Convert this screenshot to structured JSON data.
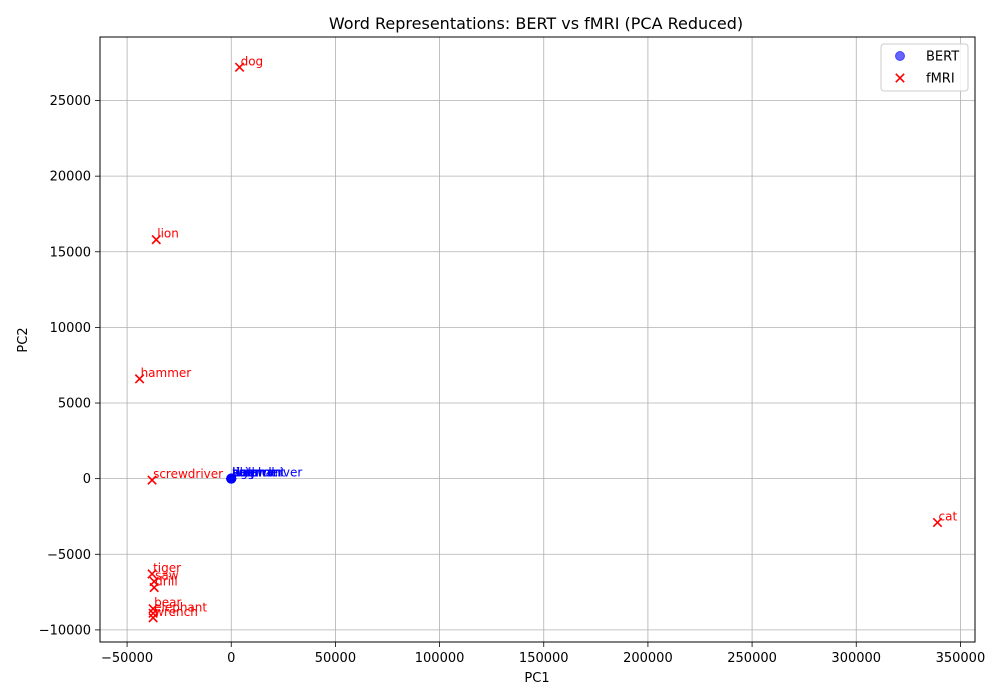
{
  "chart_data": {
    "type": "scatter",
    "title": "Word Representations: BERT vs fMRI (PCA Reduced)",
    "xlabel": "PC1",
    "ylabel": "PC2",
    "xlim": [
      -63000,
      357000
    ],
    "ylim": [
      -10800,
      29200
    ],
    "xticks": [
      -50000,
      0,
      50000,
      100000,
      150000,
      200000,
      250000,
      300000,
      350000
    ],
    "yticks": [
      -10000,
      -5000,
      0,
      5000,
      10000,
      15000,
      20000,
      25000
    ],
    "grid": true,
    "legend_position": "top-right",
    "series": [
      {
        "name": "BERT",
        "color": "#0000ff",
        "marker": "circle",
        "points": [
          {
            "label": "dog",
            "x": 0,
            "y": 0
          },
          {
            "label": "cat",
            "x": 0,
            "y": 0
          },
          {
            "label": "lion",
            "x": 0,
            "y": 0
          },
          {
            "label": "tiger",
            "x": 0,
            "y": 0
          },
          {
            "label": "bear",
            "x": 0,
            "y": 0
          },
          {
            "label": "elephant",
            "x": 0,
            "y": 0
          },
          {
            "label": "hammer",
            "x": 0,
            "y": 0
          },
          {
            "label": "saw",
            "x": 0,
            "y": 0
          },
          {
            "label": "drill",
            "x": 0,
            "y": 0
          },
          {
            "label": "wrench",
            "x": 0,
            "y": 0
          },
          {
            "label": "screwdriver",
            "x": 0,
            "y": 0
          }
        ]
      },
      {
        "name": "fMRI",
        "color": "#ff0000",
        "marker": "x",
        "points": [
          {
            "label": "dog",
            "x": 4000,
            "y": 27200
          },
          {
            "label": "lion",
            "x": -36000,
            "y": 15800
          },
          {
            "label": "hammer",
            "x": -44000,
            "y": 6600
          },
          {
            "label": "screwdriver",
            "x": -38000,
            "y": -100
          },
          {
            "label": "cat",
            "x": 339000,
            "y": -2900
          },
          {
            "label": "tiger",
            "x": -38000,
            "y": -6300
          },
          {
            "label": "saw",
            "x": -37000,
            "y": -6800
          },
          {
            "label": "drill",
            "x": -37000,
            "y": -7200
          },
          {
            "label": "bear",
            "x": -37500,
            "y": -8600
          },
          {
            "label": "elephant",
            "x": -37500,
            "y": -8900
          },
          {
            "label": "wrench",
            "x": -37500,
            "y": -9200
          }
        ]
      }
    ]
  }
}
